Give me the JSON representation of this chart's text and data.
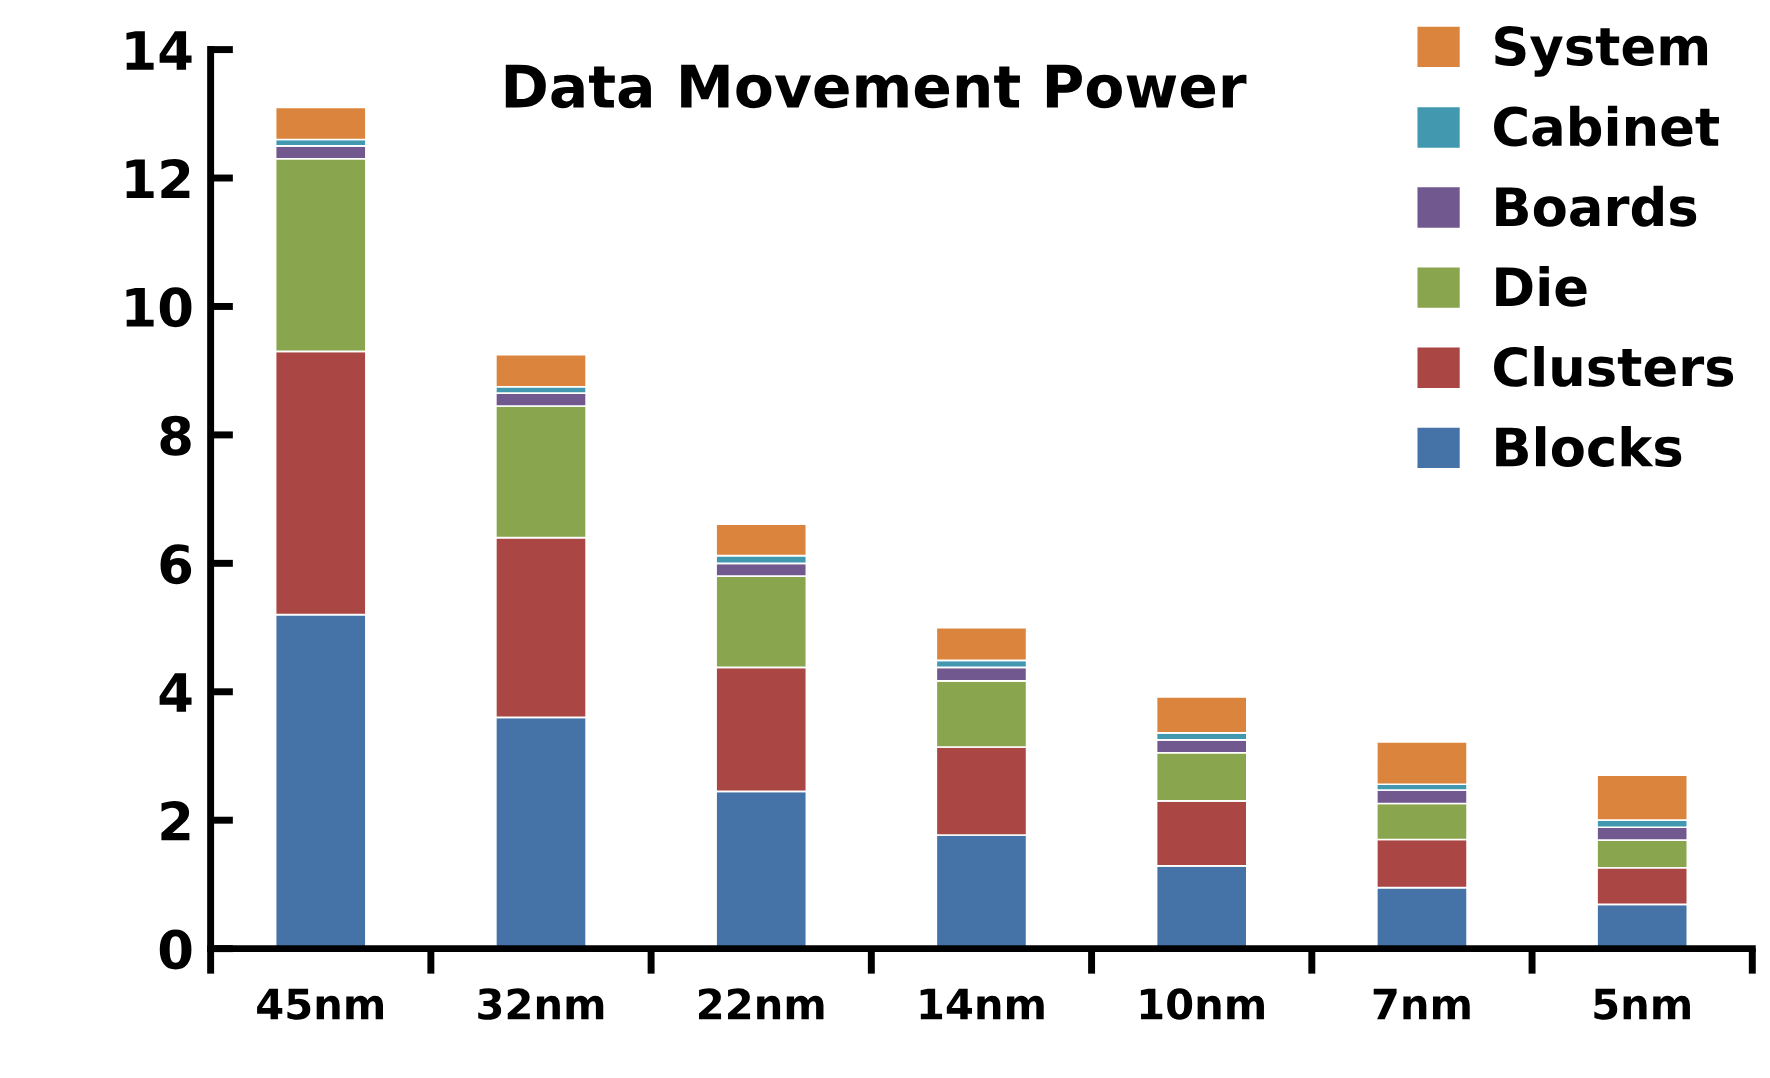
{
  "chart_data": {
    "type": "bar",
    "title": "Data Movement Power",
    "stacked": true,
    "categories": [
      "45nm",
      "32nm",
      "22nm",
      "14nm",
      "10nm",
      "7nm",
      "5nm"
    ],
    "series": [
      {
        "name": "Blocks",
        "color": "#4572a7",
        "values": [
          5.2,
          3.6,
          2.45,
          1.77,
          1.29,
          0.95,
          0.69
        ]
      },
      {
        "name": "Clusters",
        "color": "#aa4643",
        "values": [
          4.1,
          2.8,
          1.93,
          1.37,
          1.01,
          0.75,
          0.57
        ]
      },
      {
        "name": "Die",
        "color": "#89a54e",
        "values": [
          3.0,
          2.05,
          1.42,
          1.03,
          0.75,
          0.56,
          0.43
        ]
      },
      {
        "name": "Boards",
        "color": "#71588f",
        "values": [
          0.2,
          0.2,
          0.2,
          0.21,
          0.2,
          0.21,
          0.2
        ]
      },
      {
        "name": "Cabinet",
        "color": "#4198af",
        "values": [
          0.1,
          0.1,
          0.12,
          0.11,
          0.11,
          0.09,
          0.11
        ]
      },
      {
        "name": "System",
        "color": "#db843d",
        "values": [
          0.5,
          0.5,
          0.49,
          0.51,
          0.56,
          0.66,
          0.7
        ]
      }
    ],
    "ylim": [
      0,
      14
    ],
    "yticks": [
      0,
      2,
      4,
      6,
      8,
      10,
      12,
      14
    ],
    "grid": false,
    "legend": "top right"
  }
}
